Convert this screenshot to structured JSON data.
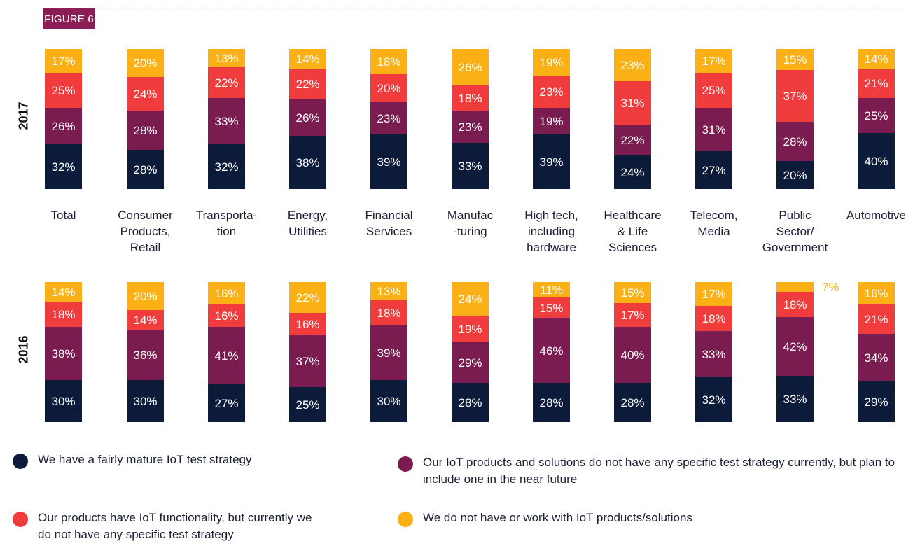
{
  "figure_label": "FIGURE 6",
  "colors": {
    "mature": "#0d1b3a",
    "plan": "#7a1c4f",
    "no_strategy": "#f03c3c",
    "no_iot": "#fbb116",
    "figure_tag": "#8c1d55"
  },
  "chart_data": {
    "type": "bar",
    "stacked": true,
    "percent": true,
    "categories": [
      "Total",
      "Consumer Products, Retail",
      "Transporta- tion",
      "Energy, Utilities",
      "Financial Services",
      "Manufac -turing",
      "High tech, including hardware",
      "Healthcare & Life Sciences",
      "Telecom, Media",
      "Public Sector/ Government",
      "Automotive"
    ],
    "category_lines": [
      [
        "Total"
      ],
      [
        "Consumer",
        "Products,",
        "Retail"
      ],
      [
        "Transporta-",
        "tion"
      ],
      [
        "Energy,",
        "Utilities"
      ],
      [
        "Financial",
        "Services"
      ],
      [
        "Manufac",
        "-turing"
      ],
      [
        "High tech,",
        "including",
        "hardware"
      ],
      [
        "Healthcare",
        "& Life",
        "Sciences"
      ],
      [
        "Telecom,",
        "Media"
      ],
      [
        "Public",
        "Sector/",
        "Government"
      ],
      [
        "Automotive"
      ]
    ],
    "legend": [
      {
        "key": "mature",
        "label": "We have a fairly mature IoT test strategy"
      },
      {
        "key": "plan",
        "label": "Our IoT products and solutions do not have any specific test strategy currently, but plan to include one in the near future"
      },
      {
        "key": "no_strategy",
        "label": "Our products have IoT functionality, but currently we do not have any specific test strategy"
      },
      {
        "key": "no_iot",
        "label": "We do not have or work with IoT products/solutions"
      }
    ],
    "panels": [
      {
        "year": "2017",
        "series": [
          {
            "key": "mature",
            "values": [
              32,
              28,
              32,
              38,
              39,
              33,
              39,
              24,
              27,
              20,
              40
            ]
          },
          {
            "key": "plan",
            "values": [
              26,
              28,
              33,
              26,
              23,
              23,
              19,
              22,
              31,
              28,
              25
            ]
          },
          {
            "key": "no_strategy",
            "values": [
              25,
              24,
              22,
              22,
              20,
              18,
              23,
              31,
              25,
              37,
              21
            ]
          },
          {
            "key": "no_iot",
            "values": [
              17,
              20,
              13,
              14,
              18,
              26,
              19,
              23,
              17,
              15,
              14
            ]
          }
        ]
      },
      {
        "year": "2016",
        "series": [
          {
            "key": "mature",
            "values": [
              30,
              30,
              27,
              25,
              30,
              28,
              28,
              28,
              32,
              33,
              29
            ]
          },
          {
            "key": "plan",
            "values": [
              38,
              36,
              41,
              37,
              39,
              29,
              46,
              40,
              33,
              42,
              34
            ]
          },
          {
            "key": "no_strategy",
            "values": [
              18,
              14,
              16,
              16,
              18,
              19,
              15,
              17,
              18,
              18,
              21
            ]
          },
          {
            "key": "no_iot",
            "values": [
              14,
              20,
              16,
              22,
              13,
              24,
              11,
              15,
              17,
              7,
              16
            ]
          }
        ]
      }
    ]
  }
}
